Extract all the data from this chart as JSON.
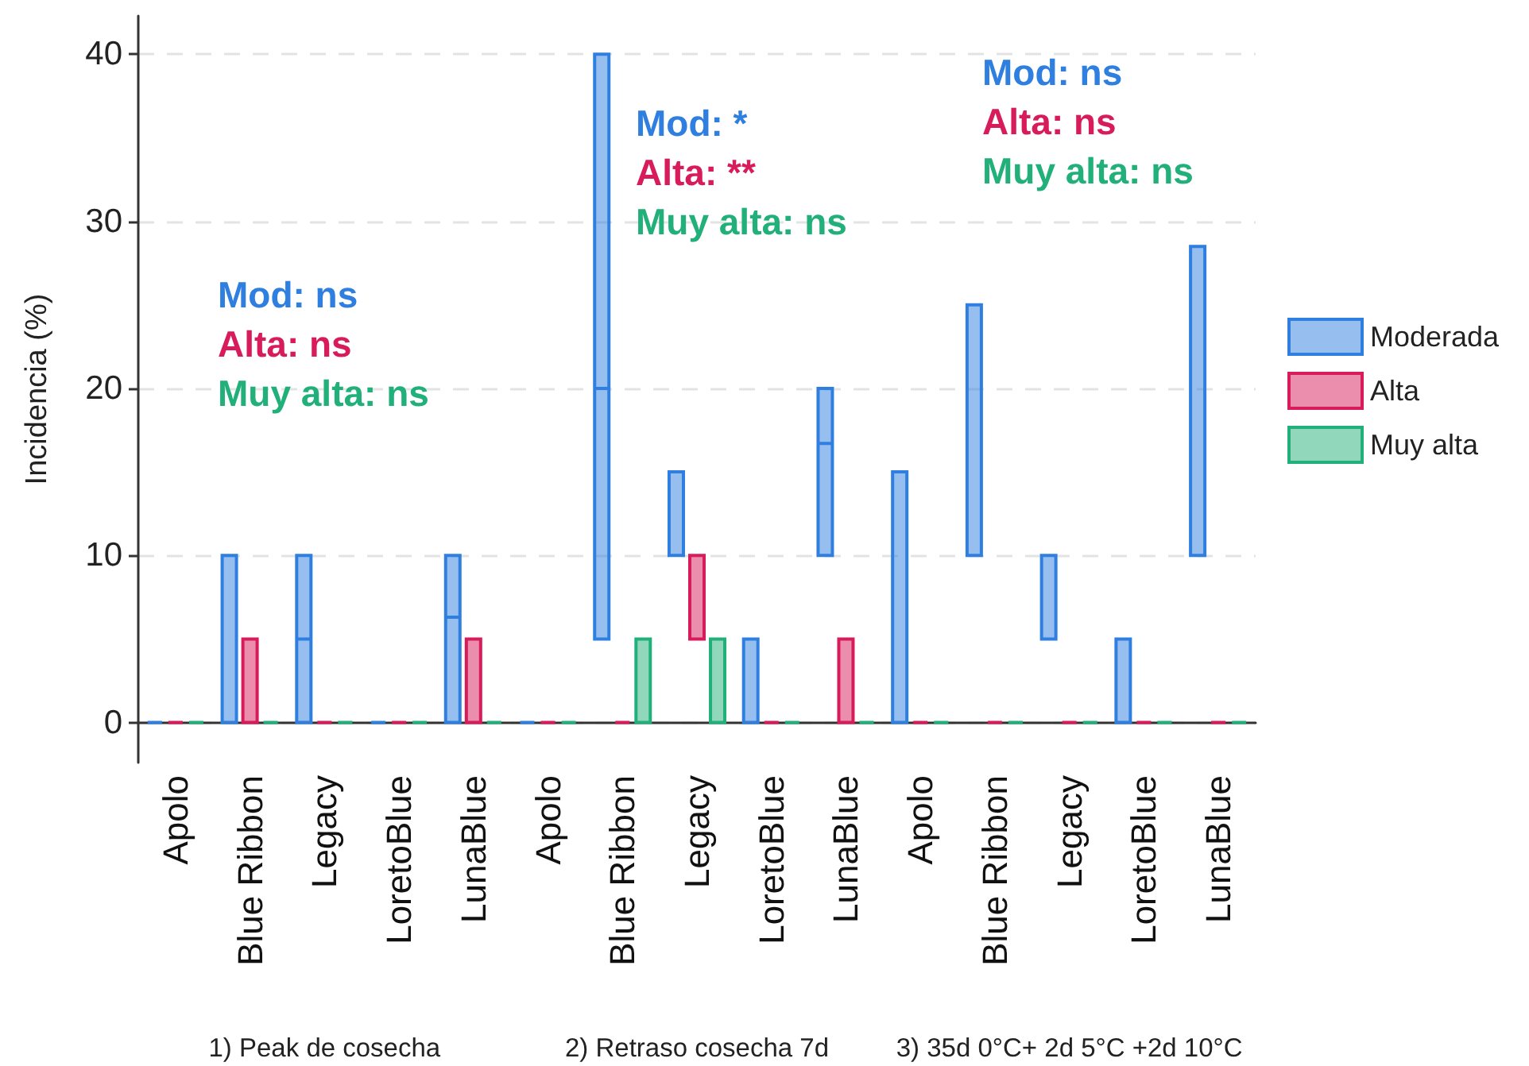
{
  "chart_data": {
    "type": "box",
    "ylabel": "Incidencia (%)",
    "categories": [
      "Apolo",
      "Blue Ribbon",
      "Legacy",
      "LoretoBlue",
      "LunaBlue",
      "Apolo",
      "Blue Ribbon",
      "Legacy",
      "LoretoBlue",
      "LunaBlue",
      "Apolo",
      "Blue Ribbon",
      "Legacy",
      "LoretoBlue",
      "LunaBlue"
    ],
    "series": [
      {
        "name": "Moderada",
        "color": "#2e7fe0",
        "boxes": [
          {
            "low": 0,
            "q1": 0,
            "median": 0,
            "q3": 0,
            "high": 0
          },
          {
            "low": 0,
            "q1": 0,
            "median": 0,
            "q3": 10,
            "high": 10
          },
          {
            "low": 0,
            "q1": 0,
            "median": 5,
            "q3": 10,
            "high": 10
          },
          {
            "low": 0,
            "q1": 0,
            "median": 0,
            "q3": 0,
            "high": 0
          },
          {
            "low": 0,
            "q1": 0,
            "median": 6.3,
            "q3": 10,
            "high": 10
          },
          {
            "low": 0,
            "q1": 0,
            "median": 0,
            "q3": 0,
            "high": 0
          },
          {
            "low": 5,
            "q1": 5,
            "median": 20,
            "q3": 40,
            "high": 40
          },
          {
            "low": 10,
            "q1": 10,
            "median": 10,
            "q3": 15,
            "high": 15
          },
          {
            "low": 0,
            "q1": 0,
            "median": 0,
            "q3": 5,
            "high": 5
          },
          {
            "low": 10,
            "q1": 10,
            "median": 16.7,
            "q3": 20,
            "high": 20
          },
          {
            "low": 0,
            "q1": 0,
            "median": 0,
            "q3": 15,
            "high": 15
          },
          {
            "low": 10,
            "q1": 10,
            "median": 10,
            "q3": 25,
            "high": 25
          },
          {
            "low": 5,
            "q1": 5,
            "median": 5,
            "q3": 10,
            "high": 10
          },
          {
            "low": 0,
            "q1": 0,
            "median": 0,
            "q3": 5,
            "high": 5
          },
          {
            "low": 10,
            "q1": 10,
            "median": 10,
            "q3": 28.5,
            "high": 28.5
          }
        ]
      },
      {
        "name": "Alta",
        "color": "#d81b5a",
        "boxes": [
          {
            "low": 0,
            "q1": 0,
            "median": 0,
            "q3": 0,
            "high": 0
          },
          {
            "low": 0,
            "q1": 0,
            "median": 0,
            "q3": 5,
            "high": 5
          },
          {
            "low": 0,
            "q1": 0,
            "median": 0,
            "q3": 0,
            "high": 0
          },
          {
            "low": 0,
            "q1": 0,
            "median": 0,
            "q3": 0,
            "high": 0
          },
          {
            "low": 0,
            "q1": 0,
            "median": 0,
            "q3": 5,
            "high": 5
          },
          {
            "low": 0,
            "q1": 0,
            "median": 0,
            "q3": 0,
            "high": 0
          },
          {
            "low": 0,
            "q1": 0,
            "median": 0,
            "q3": 0,
            "high": 0
          },
          {
            "low": 5,
            "q1": 5,
            "median": 5,
            "q3": 10,
            "high": 10
          },
          {
            "low": 0,
            "q1": 0,
            "median": 0,
            "q3": 0,
            "high": 0
          },
          {
            "low": 0,
            "q1": 0,
            "median": 0,
            "q3": 5,
            "high": 5
          },
          {
            "low": 0,
            "q1": 0,
            "median": 0,
            "q3": 0,
            "high": 0
          },
          {
            "low": 0,
            "q1": 0,
            "median": 0,
            "q3": 0,
            "high": 0
          },
          {
            "low": 0,
            "q1": 0,
            "median": 0,
            "q3": 0,
            "high": 0
          },
          {
            "low": 0,
            "q1": 0,
            "median": 0,
            "q3": 0,
            "high": 0
          },
          {
            "low": 0,
            "q1": 0,
            "median": 0,
            "q3": 0,
            "high": 0
          }
        ]
      },
      {
        "name": "Muy alta",
        "color": "#22b07a",
        "boxes": [
          {
            "low": 0,
            "q1": 0,
            "median": 0,
            "q3": 0,
            "high": 0
          },
          {
            "low": 0,
            "q1": 0,
            "median": 0,
            "q3": 0,
            "high": 0
          },
          {
            "low": 0,
            "q1": 0,
            "median": 0,
            "q3": 0,
            "high": 0
          },
          {
            "low": 0,
            "q1": 0,
            "median": 0,
            "q3": 0,
            "high": 0
          },
          {
            "low": 0,
            "q1": 0,
            "median": 0,
            "q3": 0,
            "high": 0
          },
          {
            "low": 0,
            "q1": 0,
            "median": 0,
            "q3": 0,
            "high": 0
          },
          {
            "low": 0,
            "q1": 0,
            "median": 0,
            "q3": 5,
            "high": 5
          },
          {
            "low": 0,
            "q1": 0,
            "median": 0,
            "q3": 5,
            "high": 5
          },
          {
            "low": 0,
            "q1": 0,
            "median": 0,
            "q3": 0,
            "high": 0
          },
          {
            "low": 0,
            "q1": 0,
            "median": 0,
            "q3": 0,
            "high": 0
          },
          {
            "low": 0,
            "q1": 0,
            "median": 0,
            "q3": 0,
            "high": 0
          },
          {
            "low": 0,
            "q1": 0,
            "median": 0,
            "q3": 0,
            "high": 0
          },
          {
            "low": 0,
            "q1": 0,
            "median": 0,
            "q3": 0,
            "high": 0
          },
          {
            "low": 0,
            "q1": 0,
            "median": 0,
            "q3": 0,
            "high": 0
          },
          {
            "low": 0,
            "q1": 0,
            "median": 0,
            "q3": 0,
            "high": 0
          }
        ]
      }
    ],
    "ylim": [
      -2.4,
      42.3
    ],
    "yticks": [
      0,
      10,
      20,
      30,
      40
    ],
    "grid": "y",
    "legend": "right",
    "annotations": [
      "1) Peak de cosecha",
      "Mod: ns",
      "Alta: ns",
      "Muy alta: ns",
      "2) Retraso cosecha 7d",
      "Mod: *",
      "Alta: **",
      "Muy alta: ns",
      "3) 35d 0°C+ 2d 5°C +2d 10°C",
      "Mod: ns",
      "Alta: ns",
      "Muy alta: ns"
    ]
  }
}
